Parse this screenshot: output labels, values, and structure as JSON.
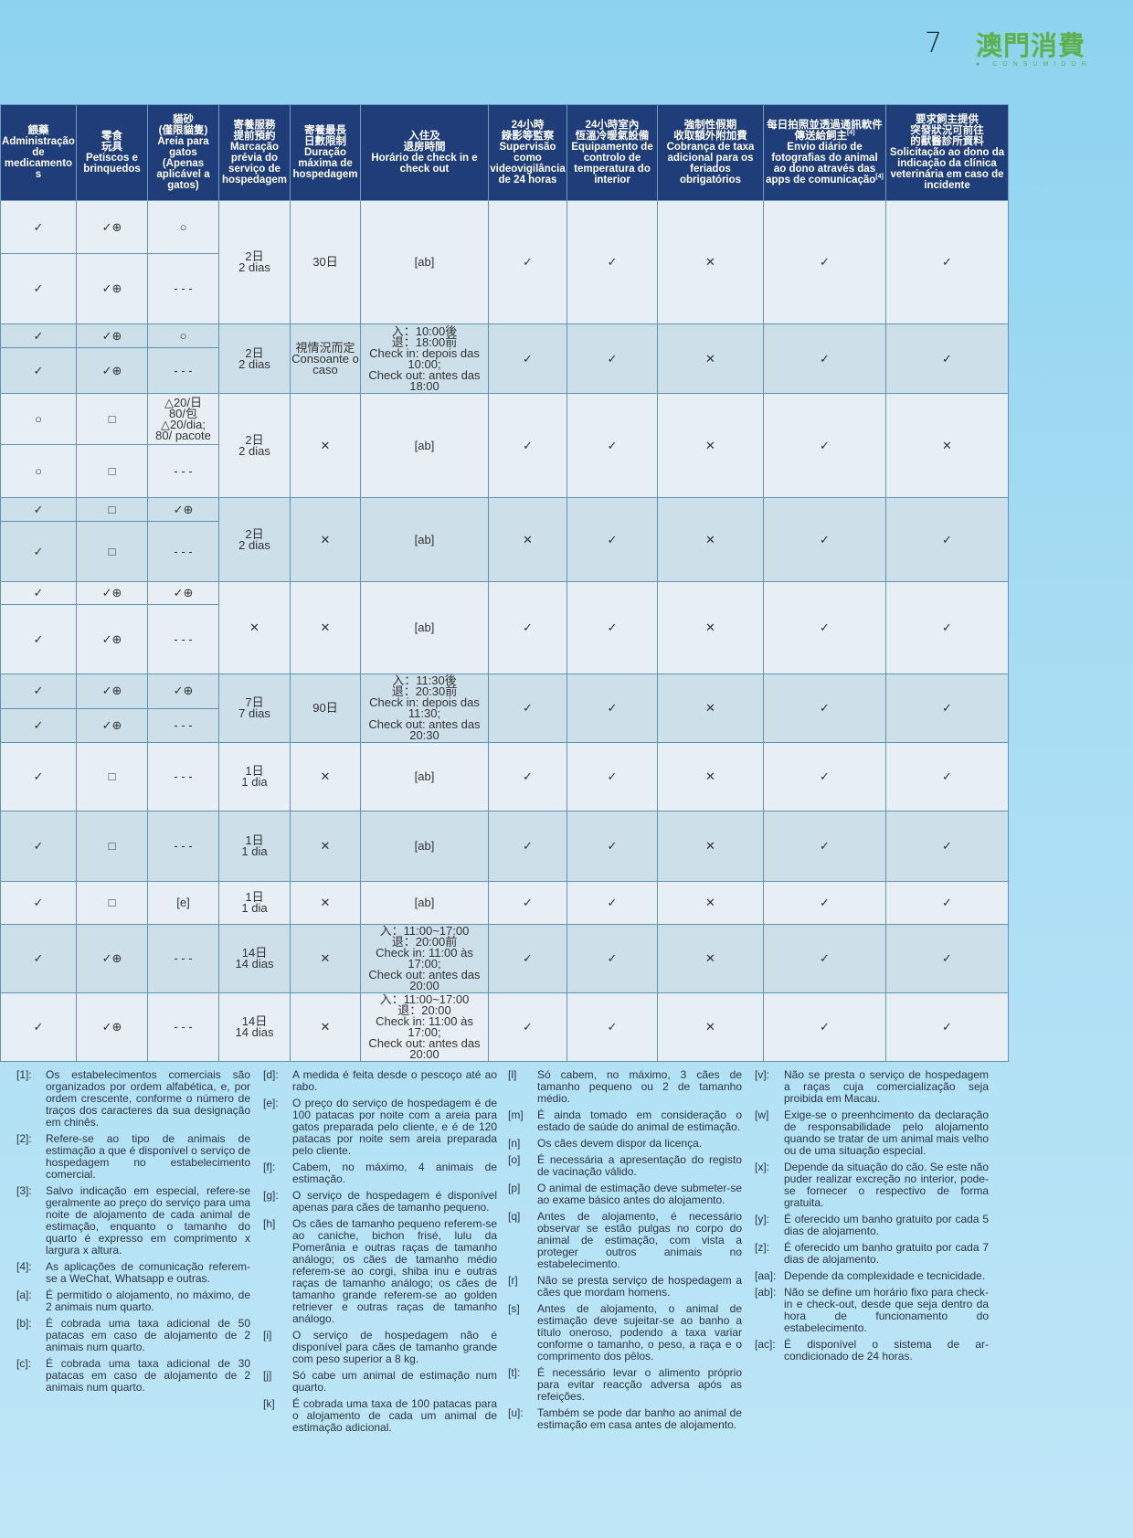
{
  "page_number": "7",
  "logo": {
    "text": "澳門消費",
    "subtitle": "CONSUMIDOR"
  },
  "colors": {
    "header_bg": "#1f3d78",
    "row_light": "#e8eff4",
    "row_dark": "#cddfe9",
    "logo_green": "#5db14a"
  },
  "table": {
    "headers": [
      "餵藥\nAdministração de medicamentos",
      "零食\n玩具\nPetiscos e brinquedos",
      "貓砂\n(僅限貓隻)\nAreia para gatos\n(Apenas aplicável a gatos)",
      "寄養服務\n提前預約\nMarcação prévia do serviço de hospedagem",
      "寄養最長\n日數限制\nDuração máxima de hospedagem",
      "入住及\n退房時間\nHorário de check in e check out",
      "24小時\n錄影等監察\nSupervisão como videovigilância de 24 horas",
      "24小時室內\n恆溫冷暖氣設備\nEquipamento de controlo de temperatura do interior",
      "強制性假期\n收取額外附加費\nCobrança de taxa adicional para os feriados obrigatórios",
      "每日拍照並透過通訊軟件傳送給飼主[4]\nEnvio diário de fotografias do animal ao dono através das apps de comunicação[4]",
      "要求飼主提供\n突發狀況可前往\n的獸醫診所資料\nSolicitação ao dono da indicação da clínica veterinária em caso de incidente"
    ],
    "groups": [
      {
        "shade": "light",
        "sub": [
          [
            "✓",
            "✓⊕",
            "○"
          ],
          [
            "✓",
            "✓⊕",
            "- - -"
          ]
        ],
        "shared": [
          "2日\n2 dias",
          "30日",
          "[ab]",
          "✓",
          "✓",
          "✕",
          "✓",
          "✓"
        ]
      },
      {
        "shade": "dark",
        "sub": [
          [
            "✓",
            "✓⊕",
            "○"
          ],
          [
            "✓",
            "✓⊕",
            "- - -"
          ]
        ],
        "shared": [
          "2日\n2 dias",
          "視情況而定\nConsoante o caso",
          "入：10:00後\n退：18:00前\nCheck in: depois das 10:00;\nCheck out: antes das 18:00",
          "✓",
          "✓",
          "✕",
          "✓",
          "✓"
        ]
      },
      {
        "shade": "light",
        "sub": [
          [
            "○",
            "□",
            "△20/日\n80/包\n△20/dia;\n80/ pacote"
          ],
          [
            "○",
            "□",
            "- - -"
          ]
        ],
        "shared": [
          "2日\n2 dias",
          "✕",
          "[ab]",
          "✓",
          "✓",
          "✕",
          "✓",
          "✕"
        ]
      },
      {
        "shade": "dark",
        "sub": [
          [
            "✓",
            "□",
            "✓⊕"
          ],
          [
            "✓",
            "□",
            "- - -"
          ]
        ],
        "shared": [
          "2日\n2 dias",
          "✕",
          "[ab]",
          "✕",
          "✓",
          "✕",
          "✓",
          "✓"
        ]
      },
      {
        "shade": "light",
        "sub": [
          [
            "✓",
            "✓⊕",
            "✓⊕"
          ],
          [
            "✓",
            "✓⊕",
            "- - -"
          ]
        ],
        "shared": [
          "✕",
          "✕",
          "[ab]",
          "✓",
          "✓",
          "✕",
          "✓",
          "✓"
        ]
      },
      {
        "shade": "dark",
        "sub": [
          [
            "✓",
            "✓⊕",
            "✓⊕"
          ],
          [
            "✓",
            "✓⊕",
            "- - -"
          ]
        ],
        "shared": [
          "7日\n7 dias",
          "90日",
          "入：11:30後\n退：20:30前\nCheck in: depois das 11:30;\nCheck out: antes das 20:30",
          "✓",
          "✓",
          "✕",
          "✓",
          "✓"
        ]
      },
      {
        "shade": "light",
        "sub": [
          [
            "✓",
            "□",
            "- - -"
          ]
        ],
        "shared": [
          "1日\n1 dia",
          "✕",
          "[ab]",
          "✓",
          "✓",
          "✕",
          "✓",
          "✓"
        ]
      },
      {
        "shade": "dark",
        "sub": [
          [
            "✓",
            "□",
            "- - -"
          ]
        ],
        "shared": [
          "1日\n1 dia",
          "✕",
          "[ab]",
          "✓",
          "✓",
          "✕",
          "✓",
          "✓"
        ]
      },
      {
        "shade": "light",
        "sub": [
          [
            "✓",
            "□",
            "[e]"
          ]
        ],
        "shared": [
          "1日\n1 dia",
          "✕",
          "[ab]",
          "✓",
          "✓",
          "✕",
          "✓",
          "✓"
        ]
      },
      {
        "shade": "dark",
        "sub": [
          [
            "✓",
            "✓⊕",
            "- - -"
          ]
        ],
        "shared": [
          "14日\n14 dias",
          "✕",
          "入：11:00~17:00\n退：20:00前\nCheck in: 11:00 às 17:00;\nCheck out: antes das 20:00",
          "✓",
          "✓",
          "✕",
          "✓",
          "✓"
        ]
      },
      {
        "shade": "light",
        "sub": [
          [
            "✓",
            "✓⊕",
            "- - -"
          ]
        ],
        "shared": [
          "14日\n14 dias",
          "✕",
          "入：11:00~17:00\n退：20:00\nCheck in: 11:00 às 17:00;\nCheck out: antes das 20:00",
          "✓",
          "✓",
          "✕",
          "✓",
          "✓"
        ]
      }
    ]
  },
  "footnotes": [
    [
      {
        "key": "[1]:",
        "text": "Os estabelecimentos comerciais são organizados por ordem alfabética, e, por ordem crescente, conforme o número de traços dos caracteres da sua designação em chinês."
      },
      {
        "key": "[2]:",
        "text": "Refere-se ao tipo de animais de estimação a que é disponível o serviço de hospedagem no estabelecimento comercial."
      },
      {
        "key": "[3]:",
        "text": "Salvo indicação em especial, refere-se geralmente ao preço do serviço para uma noite de alojamento de cada animal de estimação, enquanto o tamanho do quarto é expresso em comprimento x largura x altura."
      },
      {
        "key": "[4]:",
        "text": "As aplicações de comunicação referem-se a WeChat, Whatsapp e outras."
      },
      {
        "key": "[a]:",
        "text": "É permitido o alojamento, no máximo, de 2 animais num quarto."
      },
      {
        "key": "[b]:",
        "text": "É cobrada uma taxa adicional de 50 patacas em caso de alojamento de 2 animais num quarto."
      },
      {
        "key": "[c]:",
        "text": "É cobrada uma taxa adicional de 30 patacas em caso de alojamento de 2 animais num quarto."
      }
    ],
    [
      {
        "key": "[d]:",
        "text": "A medida é feita desde o pescoço até ao rabo."
      },
      {
        "key": "[e]:",
        "text": "O preço do serviço de hospedagem é de 100 patacas por noite com a areia para gatos preparada pelo cliente, e é de 120 patacas por noite sem areia preparada pelo cliente."
      },
      {
        "key": "[f]:",
        "text": "Cabem, no máximo, 4 animais de estimação."
      },
      {
        "key": "[g]:",
        "text": "O serviço de hospedagem é disponível apenas para cães de tamanho pequeno."
      },
      {
        "key": "[h]",
        "text": "Os cães de tamanho pequeno referem-se ao caniche, bichon frisé, lulu da Pomerânia e outras raças de tamanho análogo; os cães de tamanho médio referem-se ao corgi, shiba inu e outras raças de tamanho análogo; os cães de tamanho grande referem-se ao golden retriever e outras raças de tamanho análogo."
      },
      {
        "key": "[i]",
        "text": "O serviço de hospedagem não é disponível para cães de tamanho grande com peso superior a 8 kg."
      },
      {
        "key": "[j]",
        "text": "Só cabe um animal de estimação num quarto."
      },
      {
        "key": "[k]",
        "text": "É cobrada uma taxa de 100 patacas para o alojamento de cada um animal de estimação adicional."
      }
    ],
    [
      {
        "key": "[l]",
        "text": "Só cabem, no máximo, 3 cães de tamanho pequeno ou 2 de tamanho médio."
      },
      {
        "key": "[m]",
        "text": "É ainda tomado em consideração o estado de saúde do animal de estimação."
      },
      {
        "key": "[n]",
        "text": "Os cães devem dispor da licença."
      },
      {
        "key": "[o]",
        "text": "É necessária a apresentação do registo de vacinação válido."
      },
      {
        "key": "[p]",
        "text": "O animal de estimação deve submeter-se ao exame básico antes do alojamento."
      },
      {
        "key": "[q]",
        "text": "Antes de alojamento, é necessário observar se estão pulgas no corpo do animal de estimação, com vista a proteger outros animais no estabelecimento."
      },
      {
        "key": "[r]",
        "text": "Não se presta serviço de hospedagem a cães que mordam homens."
      },
      {
        "key": "[s]",
        "text": "Antes de alojamento, o animal de estimação deve sujeitar-se ao banho a título oneroso, podendo a taxa variar conforme o tamanho, o peso, a raça e o comprimento dos pêlos."
      },
      {
        "key": "[t]:",
        "text": "É necessário levar o alimento próprio para evitar reacção adversa após as refeições."
      },
      {
        "key": "[u]:",
        "text": "Também se pode dar banho ao animal de estimação em casa antes de alojamento."
      }
    ],
    [
      {
        "key": "[v]:",
        "text": "Não se presta o serviço de hospedagem a raças cuja comercialização seja proibida em Macau."
      },
      {
        "key": "[w]",
        "text": "Exige-se o preenhcimento da declaração de responsabilidade pelo alojamento quando se tratar de um animal mais velho ou de uma situação especial."
      },
      {
        "key": "[x]:",
        "text": "Depende da situação do cão. Se este não puder realizar excreção no interior, pode-se fornecer o respectivo de forma gratuita."
      },
      {
        "key": "[y]:",
        "text": "É oferecido um banho gratuito por cada 5 dias de alojamento."
      },
      {
        "key": "[z]:",
        "text": "É oferecido um banho gratuito por cada 7 dias de alojamento."
      },
      {
        "key": "[aa]:",
        "text": "Depende da complexidade e tecnicidade."
      },
      {
        "key": "[ab]:",
        "text": "Não se define um horário fixo para check-in e check-out, desde que seja dentro da hora de funcionamento do estabelecimento."
      },
      {
        "key": "[ac]:",
        "text": "É disponível o sistema de ar-condicionado de 24 horas."
      }
    ]
  ]
}
